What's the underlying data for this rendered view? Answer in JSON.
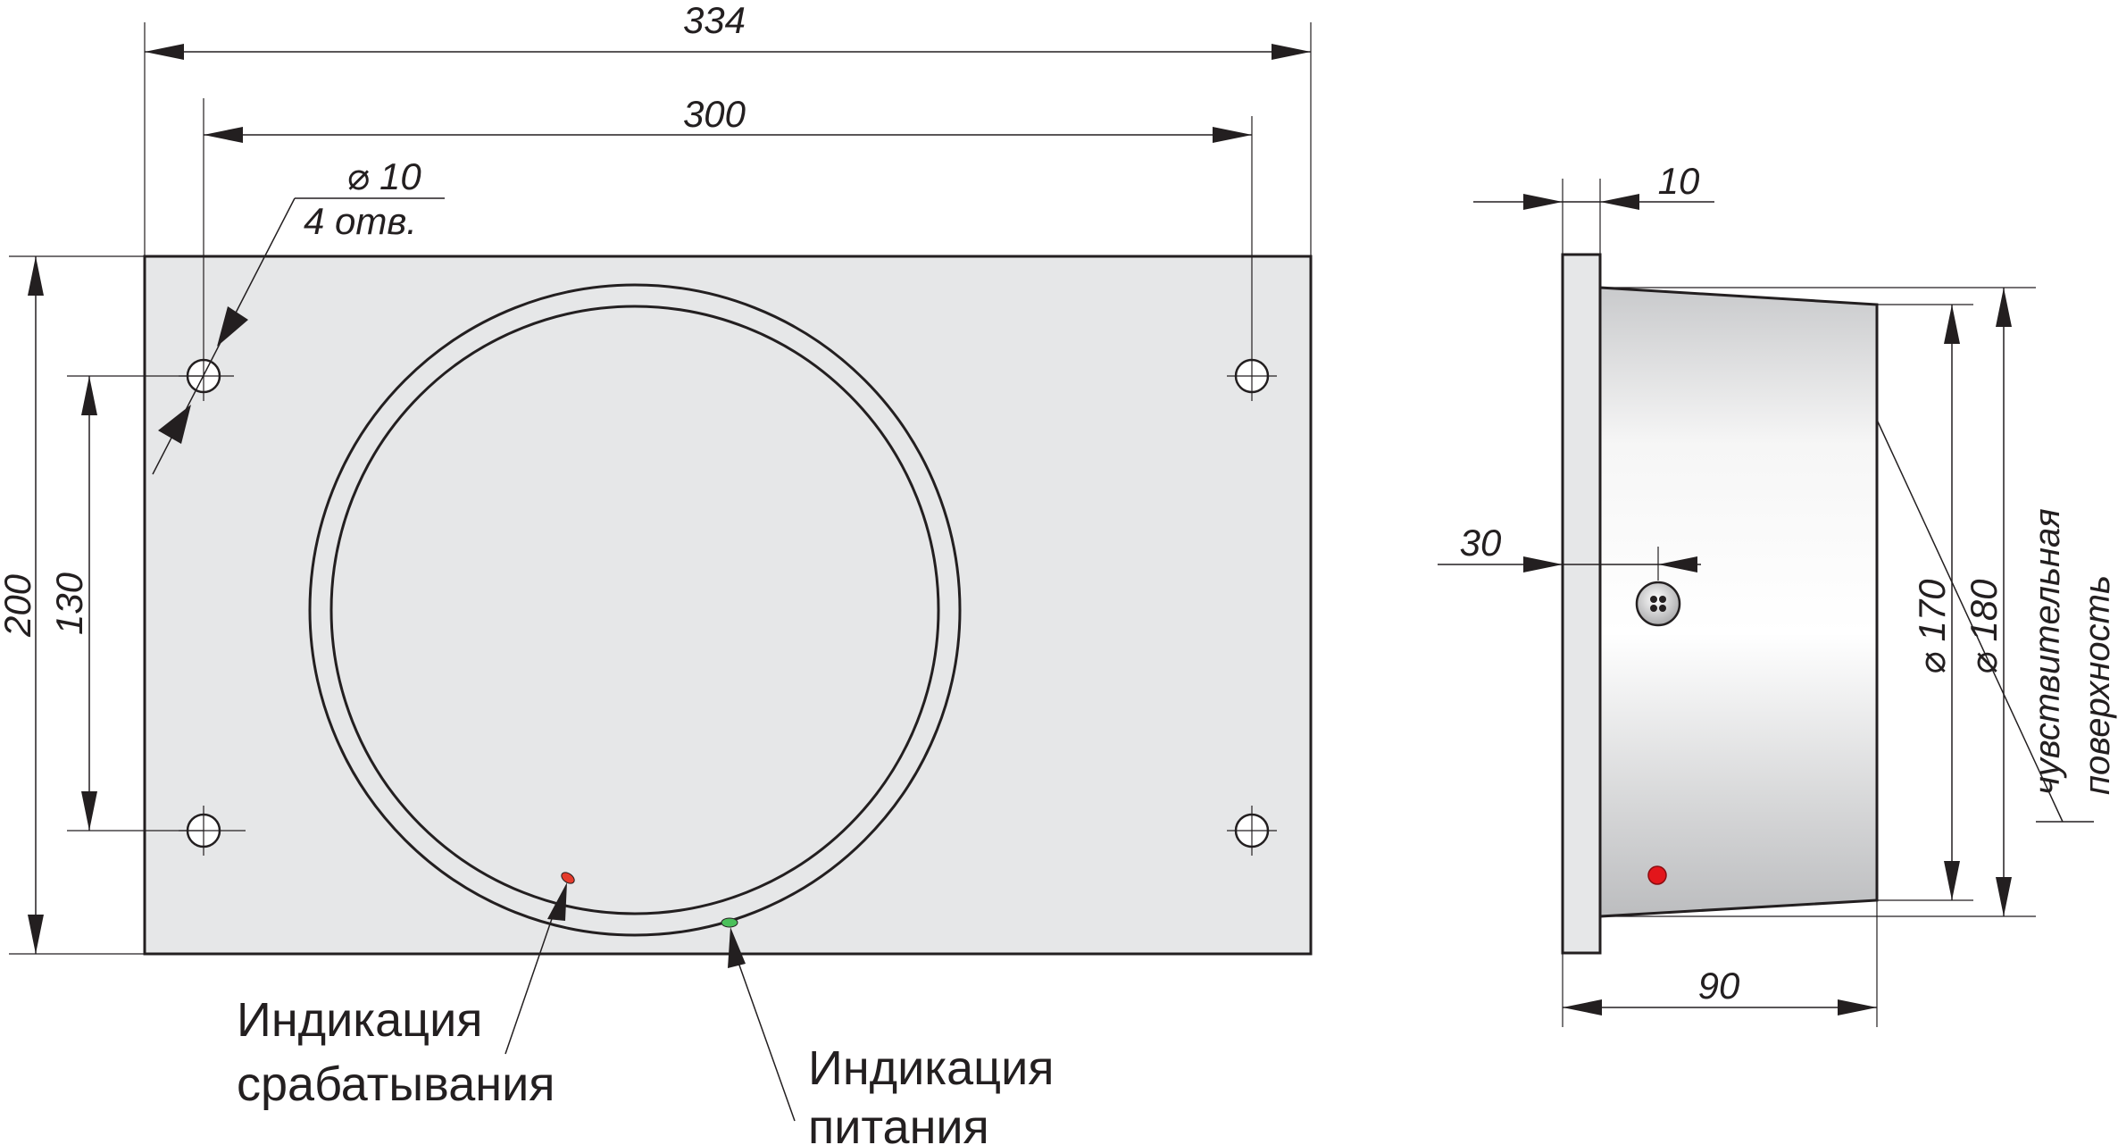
{
  "front_view": {
    "dims": {
      "overall_width": "334",
      "hole_spacing_h": "300",
      "overall_height": "200",
      "hole_spacing_v": "130",
      "hole_diameter": "⌀ 10",
      "hole_count": "4 отв."
    },
    "labels": {
      "trigger_line1": "Индикация",
      "trigger_line2": "срабатывания",
      "power_line1": "Индикация",
      "power_line2": "питания"
    },
    "led_colors": {
      "trigger": "#e53b2c",
      "power": "#4ac05a"
    }
  },
  "side_view": {
    "dims": {
      "flange": "10",
      "indicator_offset": "30",
      "depth": "90",
      "diameter_inner": "⌀ 170",
      "diameter_outer": "⌀ 180"
    },
    "labels": {
      "surface_line1": "чувствительная",
      "surface_line2": "поверхность"
    },
    "led_color": "#e3161b"
  }
}
